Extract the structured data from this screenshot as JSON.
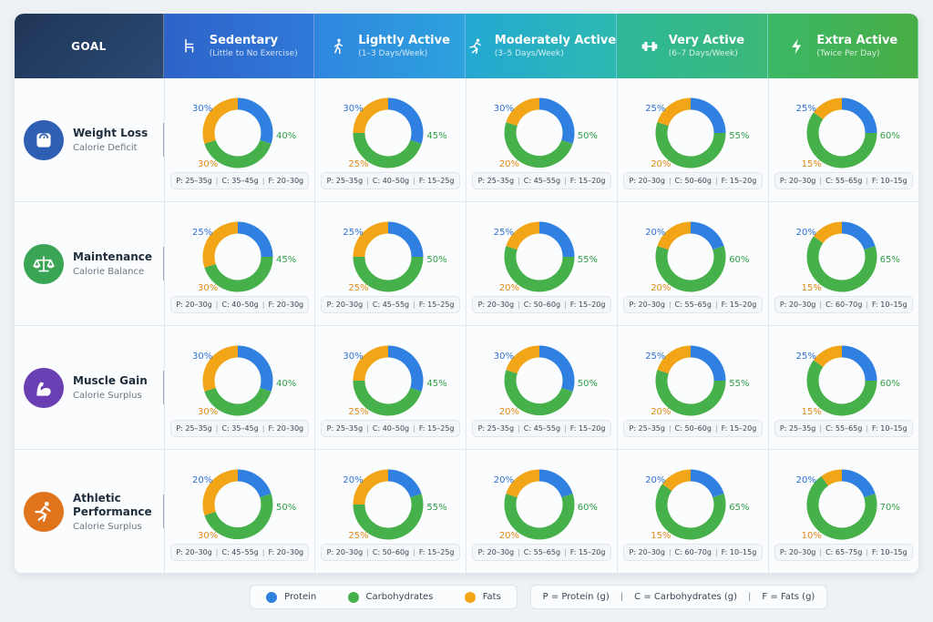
{
  "header": {
    "goal_label": "GOAL",
    "columns": [
      {
        "title": "Sedentary",
        "subtitle": "(Little to No Exercise)",
        "icon": "chair-icon"
      },
      {
        "title": "Lightly Active",
        "subtitle": "(1–3 Days/Week)",
        "icon": "walking-icon"
      },
      {
        "title": "Moderately Active",
        "subtitle": "(3–5 Days/Week)",
        "icon": "running-icon"
      },
      {
        "title": "Very Active",
        "subtitle": "(6–7 Days/Week)",
        "icon": "dumbbell-icon"
      },
      {
        "title": "Extra Active",
        "subtitle": "(Twice Per Day)",
        "icon": "lightning-icon"
      }
    ]
  },
  "goals": [
    {
      "title": "Weight Loss",
      "subtitle": "Calorie Deficit",
      "icon": "scale-icon",
      "color": "#2f5fb3"
    },
    {
      "title": "Maintenance",
      "subtitle": "Calorie Balance",
      "icon": "balance-icon",
      "color": "#3aa655"
    },
    {
      "title": "Muscle Gain",
      "subtitle": "Calorie Surplus",
      "icon": "flexed-arm-icon",
      "color": "#6a3fb4"
    },
    {
      "title": "Athletic Performance",
      "subtitle": "Calorie Surplus",
      "icon": "sprinter-icon",
      "color": "#e0741c"
    }
  ],
  "colors": {
    "protein": "#2f80e0",
    "carbohydrates": "#46b04a",
    "fats": "#f2a516"
  },
  "legend": {
    "protein": "Protein",
    "carbohydrates": "Carbohydrates",
    "fats": "Fats",
    "key_p": "P = Protein (g)",
    "key_c": "C = Carbohydrates (g)",
    "key_f": "F = Fats (g)",
    "sep": "|"
  },
  "chart_data": {
    "type": "pie",
    "variant": "donut",
    "rows": [
      "Weight Loss",
      "Maintenance",
      "Muscle Gain",
      "Athletic Performance"
    ],
    "columns": [
      "Sedentary",
      "Lightly Active",
      "Moderately Active",
      "Very Active",
      "Extra Active"
    ],
    "series_names": [
      "Protein",
      "Carbohydrates",
      "Fats"
    ],
    "cells": [
      [
        {
          "protein": 30,
          "carbs": 40,
          "fats": 30,
          "p_g": "P: 25–35g",
          "c_g": "C: 35–45g",
          "f_g": "F: 20–30g",
          "p_label": "30%",
          "c_label": "40%",
          "f_label": "30%"
        },
        {
          "protein": 30,
          "carbs": 45,
          "fats": 25,
          "p_g": "P: 25–35g",
          "c_g": "C: 40–50g",
          "f_g": "F: 15–25g",
          "p_label": "30%",
          "c_label": "45%",
          "f_label": "25%"
        },
        {
          "protein": 30,
          "carbs": 50,
          "fats": 20,
          "p_g": "P: 25–35g",
          "c_g": "C: 45–55g",
          "f_g": "F: 15–20g",
          "p_label": "30%",
          "c_label": "50%",
          "f_label": "20%"
        },
        {
          "protein": 25,
          "carbs": 55,
          "fats": 20,
          "p_g": "P: 20–30g",
          "c_g": "C: 50–60g",
          "f_g": "F: 15–20g",
          "p_label": "25%",
          "c_label": "55%",
          "f_label": "20%"
        },
        {
          "protein": 25,
          "carbs": 60,
          "fats": 15,
          "p_g": "P: 20–30g",
          "c_g": "C: 55–65g",
          "f_g": "F: 10–15g",
          "p_label": "25%",
          "c_label": "60%",
          "f_label": "15%"
        }
      ],
      [
        {
          "protein": 25,
          "carbs": 45,
          "fats": 30,
          "p_g": "P: 20–30g",
          "c_g": "C: 40–50g",
          "f_g": "F: 20–30g",
          "p_label": "25%",
          "c_label": "45%",
          "f_label": "30%"
        },
        {
          "protein": 25,
          "carbs": 50,
          "fats": 25,
          "p_g": "P: 20–30g",
          "c_g": "C: 45–55g",
          "f_g": "F: 15–25g",
          "p_label": "25%",
          "c_label": "50%",
          "f_label": "25%"
        },
        {
          "protein": 25,
          "carbs": 55,
          "fats": 20,
          "p_g": "P: 20–30g",
          "c_g": "C: 50–60g",
          "f_g": "F: 15–20g",
          "p_label": "25%",
          "c_label": "55%",
          "f_label": "20%"
        },
        {
          "protein": 20,
          "carbs": 60,
          "fats": 20,
          "p_g": "P: 20–30g",
          "c_g": "C: 55–65g",
          "f_g": "F: 15–20g",
          "p_label": "20%",
          "c_label": "60%",
          "f_label": "20%"
        },
        {
          "protein": 20,
          "carbs": 65,
          "fats": 15,
          "p_g": "P: 20–30g",
          "c_g": "C: 60–70g",
          "f_g": "F: 10–15g",
          "p_label": "20%",
          "c_label": "65%",
          "f_label": "15%"
        }
      ],
      [
        {
          "protein": 30,
          "carbs": 40,
          "fats": 30,
          "p_g": "P: 25–35g",
          "c_g": "C: 35–45g",
          "f_g": "F: 20–30g",
          "p_label": "30%",
          "c_label": "40%",
          "f_label": "30%"
        },
        {
          "protein": 30,
          "carbs": 45,
          "fats": 25,
          "p_g": "P: 25–35g",
          "c_g": "C: 40–50g",
          "f_g": "F: 15–25g",
          "p_label": "30%",
          "c_label": "45%",
          "f_label": "25%"
        },
        {
          "protein": 30,
          "carbs": 50,
          "fats": 20,
          "p_g": "P: 25–35g",
          "c_g": "C: 45–55g",
          "f_g": "F: 15–20g",
          "p_label": "30%",
          "c_label": "50%",
          "f_label": "20%"
        },
        {
          "protein": 25,
          "carbs": 55,
          "fats": 20,
          "p_g": "P: 25–35g",
          "c_g": "C: 50–60g",
          "f_g": "F: 15–20g",
          "p_label": "25%",
          "c_label": "55%",
          "f_label": "20%"
        },
        {
          "protein": 25,
          "carbs": 60,
          "fats": 15,
          "p_g": "P: 25–35g",
          "c_g": "C: 55–65g",
          "f_g": "F: 10–15g",
          "p_label": "25%",
          "c_label": "60%",
          "f_label": "15%"
        }
      ],
      [
        {
          "protein": 20,
          "carbs": 50,
          "fats": 30,
          "p_g": "P: 20–30g",
          "c_g": "C: 45–55g",
          "f_g": "F: 20–30g",
          "p_label": "20%",
          "c_label": "50%",
          "f_label": "30%"
        },
        {
          "protein": 20,
          "carbs": 55,
          "fats": 25,
          "p_g": "P: 20–30g",
          "c_g": "C: 50–60g",
          "f_g": "F: 15–25g",
          "p_label": "20%",
          "c_label": "55%",
          "f_label": "25%"
        },
        {
          "protein": 20,
          "carbs": 60,
          "fats": 20,
          "p_g": "P: 20–30g",
          "c_g": "C: 55–65g",
          "f_g": "F: 15–20g",
          "p_label": "20%",
          "c_label": "60%",
          "f_label": "20%"
        },
        {
          "protein": 20,
          "carbs": 65,
          "fats": 15,
          "p_g": "P: 20–30g",
          "c_g": "C: 60–70g",
          "f_g": "F: 10–15g",
          "p_label": "20%",
          "c_label": "65%",
          "f_label": "15%"
        },
        {
          "protein": 20,
          "carbs": 70,
          "fats": 10,
          "p_g": "P: 20–30g",
          "c_g": "C: 65–75g",
          "f_g": "F: 10–15g",
          "p_label": "20%",
          "c_label": "70%",
          "f_label": "10%"
        }
      ]
    ]
  }
}
